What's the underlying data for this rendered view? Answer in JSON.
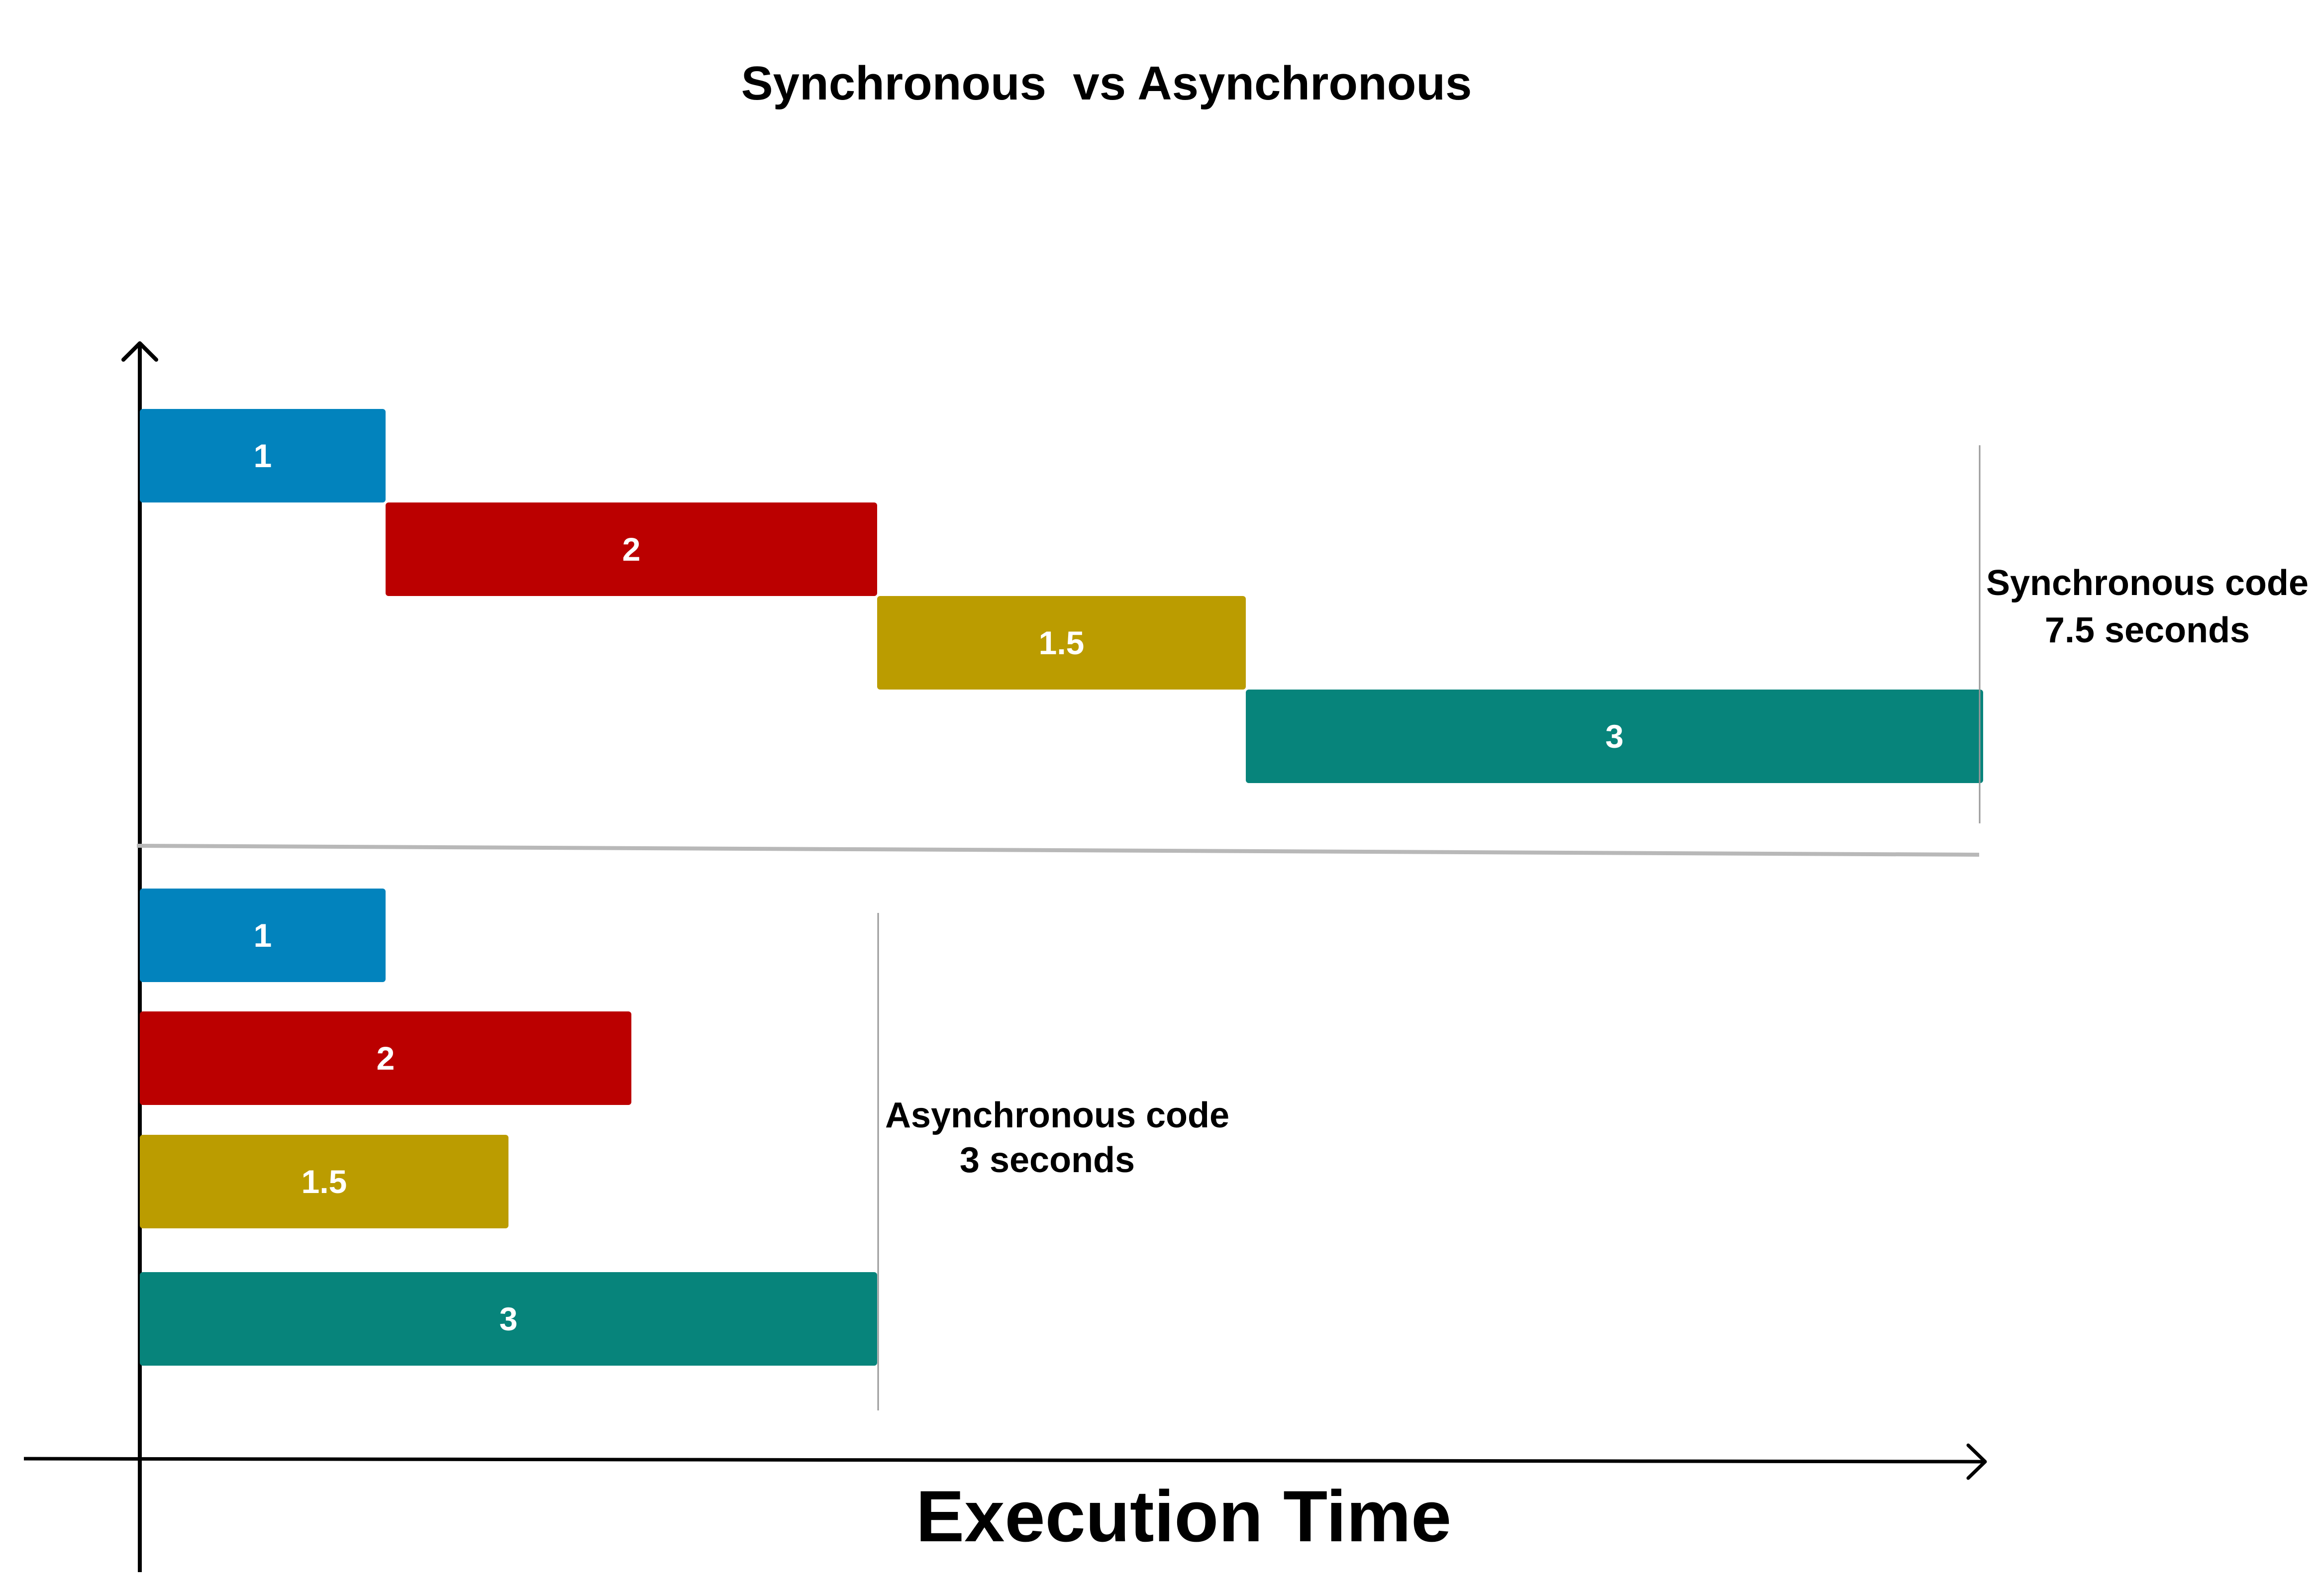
{
  "title": "Synchronous  vs Asynchronous",
  "x_axis_label": "Execution Time",
  "colors": {
    "task1": "#0283bd",
    "task2": "#bb0000",
    "task3": "#bb9c00",
    "task4": "#07847b",
    "axis": "#000000",
    "separator": "#b8b8b8",
    "marker": "#999999",
    "bar_text": "#ffffff"
  },
  "synchronous": {
    "note_line1": "Synchronous code",
    "note_line2": "7.5 seconds",
    "tasks": [
      {
        "label": "1",
        "start": 0,
        "duration": 1,
        "color": "#0283bd"
      },
      {
        "label": "2",
        "start": 1,
        "duration": 2,
        "color": "#bb0000"
      },
      {
        "label": "1.5",
        "start": 3,
        "duration": 1.5,
        "color": "#bb9c00"
      },
      {
        "label": "3",
        "start": 4.5,
        "duration": 3,
        "color": "#07847b"
      }
    ]
  },
  "asynchronous": {
    "note_line1": "Asynchronous code",
    "note_line2": "3 seconds",
    "tasks": [
      {
        "label": "1",
        "start": 0,
        "duration": 1,
        "color": "#0283bd"
      },
      {
        "label": "2",
        "start": 0,
        "duration": 2,
        "color": "#bb0000"
      },
      {
        "label": "1.5",
        "start": 0,
        "duration": 1.5,
        "color": "#bb9c00"
      },
      {
        "label": "3",
        "start": 0,
        "duration": 3,
        "color": "#07847b"
      }
    ]
  }
}
